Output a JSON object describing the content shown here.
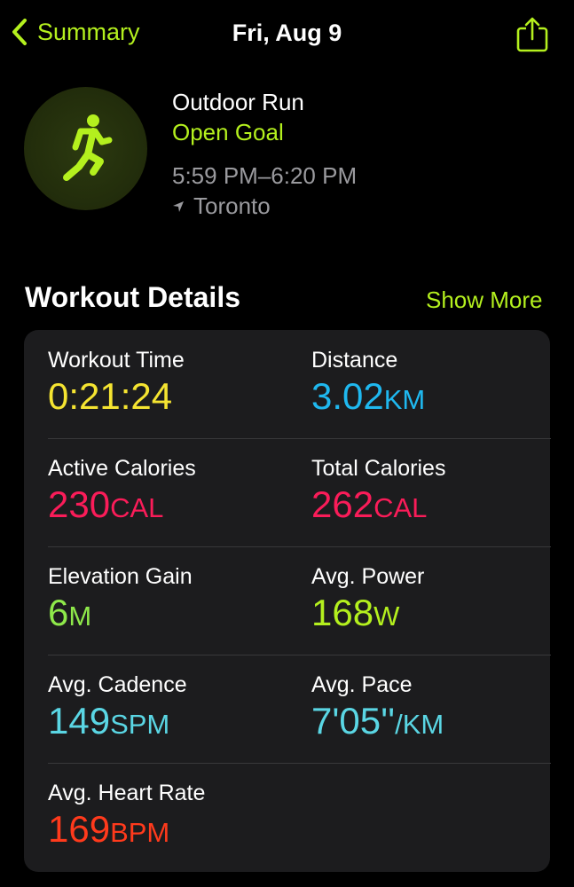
{
  "nav": {
    "back_label": "Summary",
    "title": "Fri, Aug 9"
  },
  "workout": {
    "type": "Outdoor Run",
    "goal": "Open Goal",
    "time_range": "5:59 PM–6:20 PM",
    "location": "Toronto"
  },
  "section": {
    "title": "Workout Details",
    "show_more": "Show More"
  },
  "colors": {
    "accent": "#b4f01e",
    "workout_time": "#f5e431",
    "distance": "#1fb8ef",
    "calories": "#fa1c59",
    "elevation": "#8ee84a",
    "power": "#b4f01e",
    "cadence": "#5ad6e4",
    "pace": "#5ad6e4",
    "heart_rate": "#ff3a1c"
  },
  "metrics": [
    {
      "label": "Workout Time",
      "value": "0:21:24",
      "unit": ""
    },
    {
      "label": "Distance",
      "value": "3.02",
      "unit": "KM"
    },
    {
      "label": "Active Calories",
      "value": "230",
      "unit": "CAL"
    },
    {
      "label": "Total Calories",
      "value": "262",
      "unit": "CAL"
    },
    {
      "label": "Elevation Gain",
      "value": "6",
      "unit": "M"
    },
    {
      "label": "Avg. Power",
      "value": "168",
      "unit": "W"
    },
    {
      "label": "Avg. Cadence",
      "value": "149",
      "unit": "SPM"
    },
    {
      "label": "Avg. Pace",
      "value": "7'05''",
      "unit": "/KM"
    },
    {
      "label": "Avg. Heart Rate",
      "value": "169",
      "unit": "BPM"
    }
  ]
}
